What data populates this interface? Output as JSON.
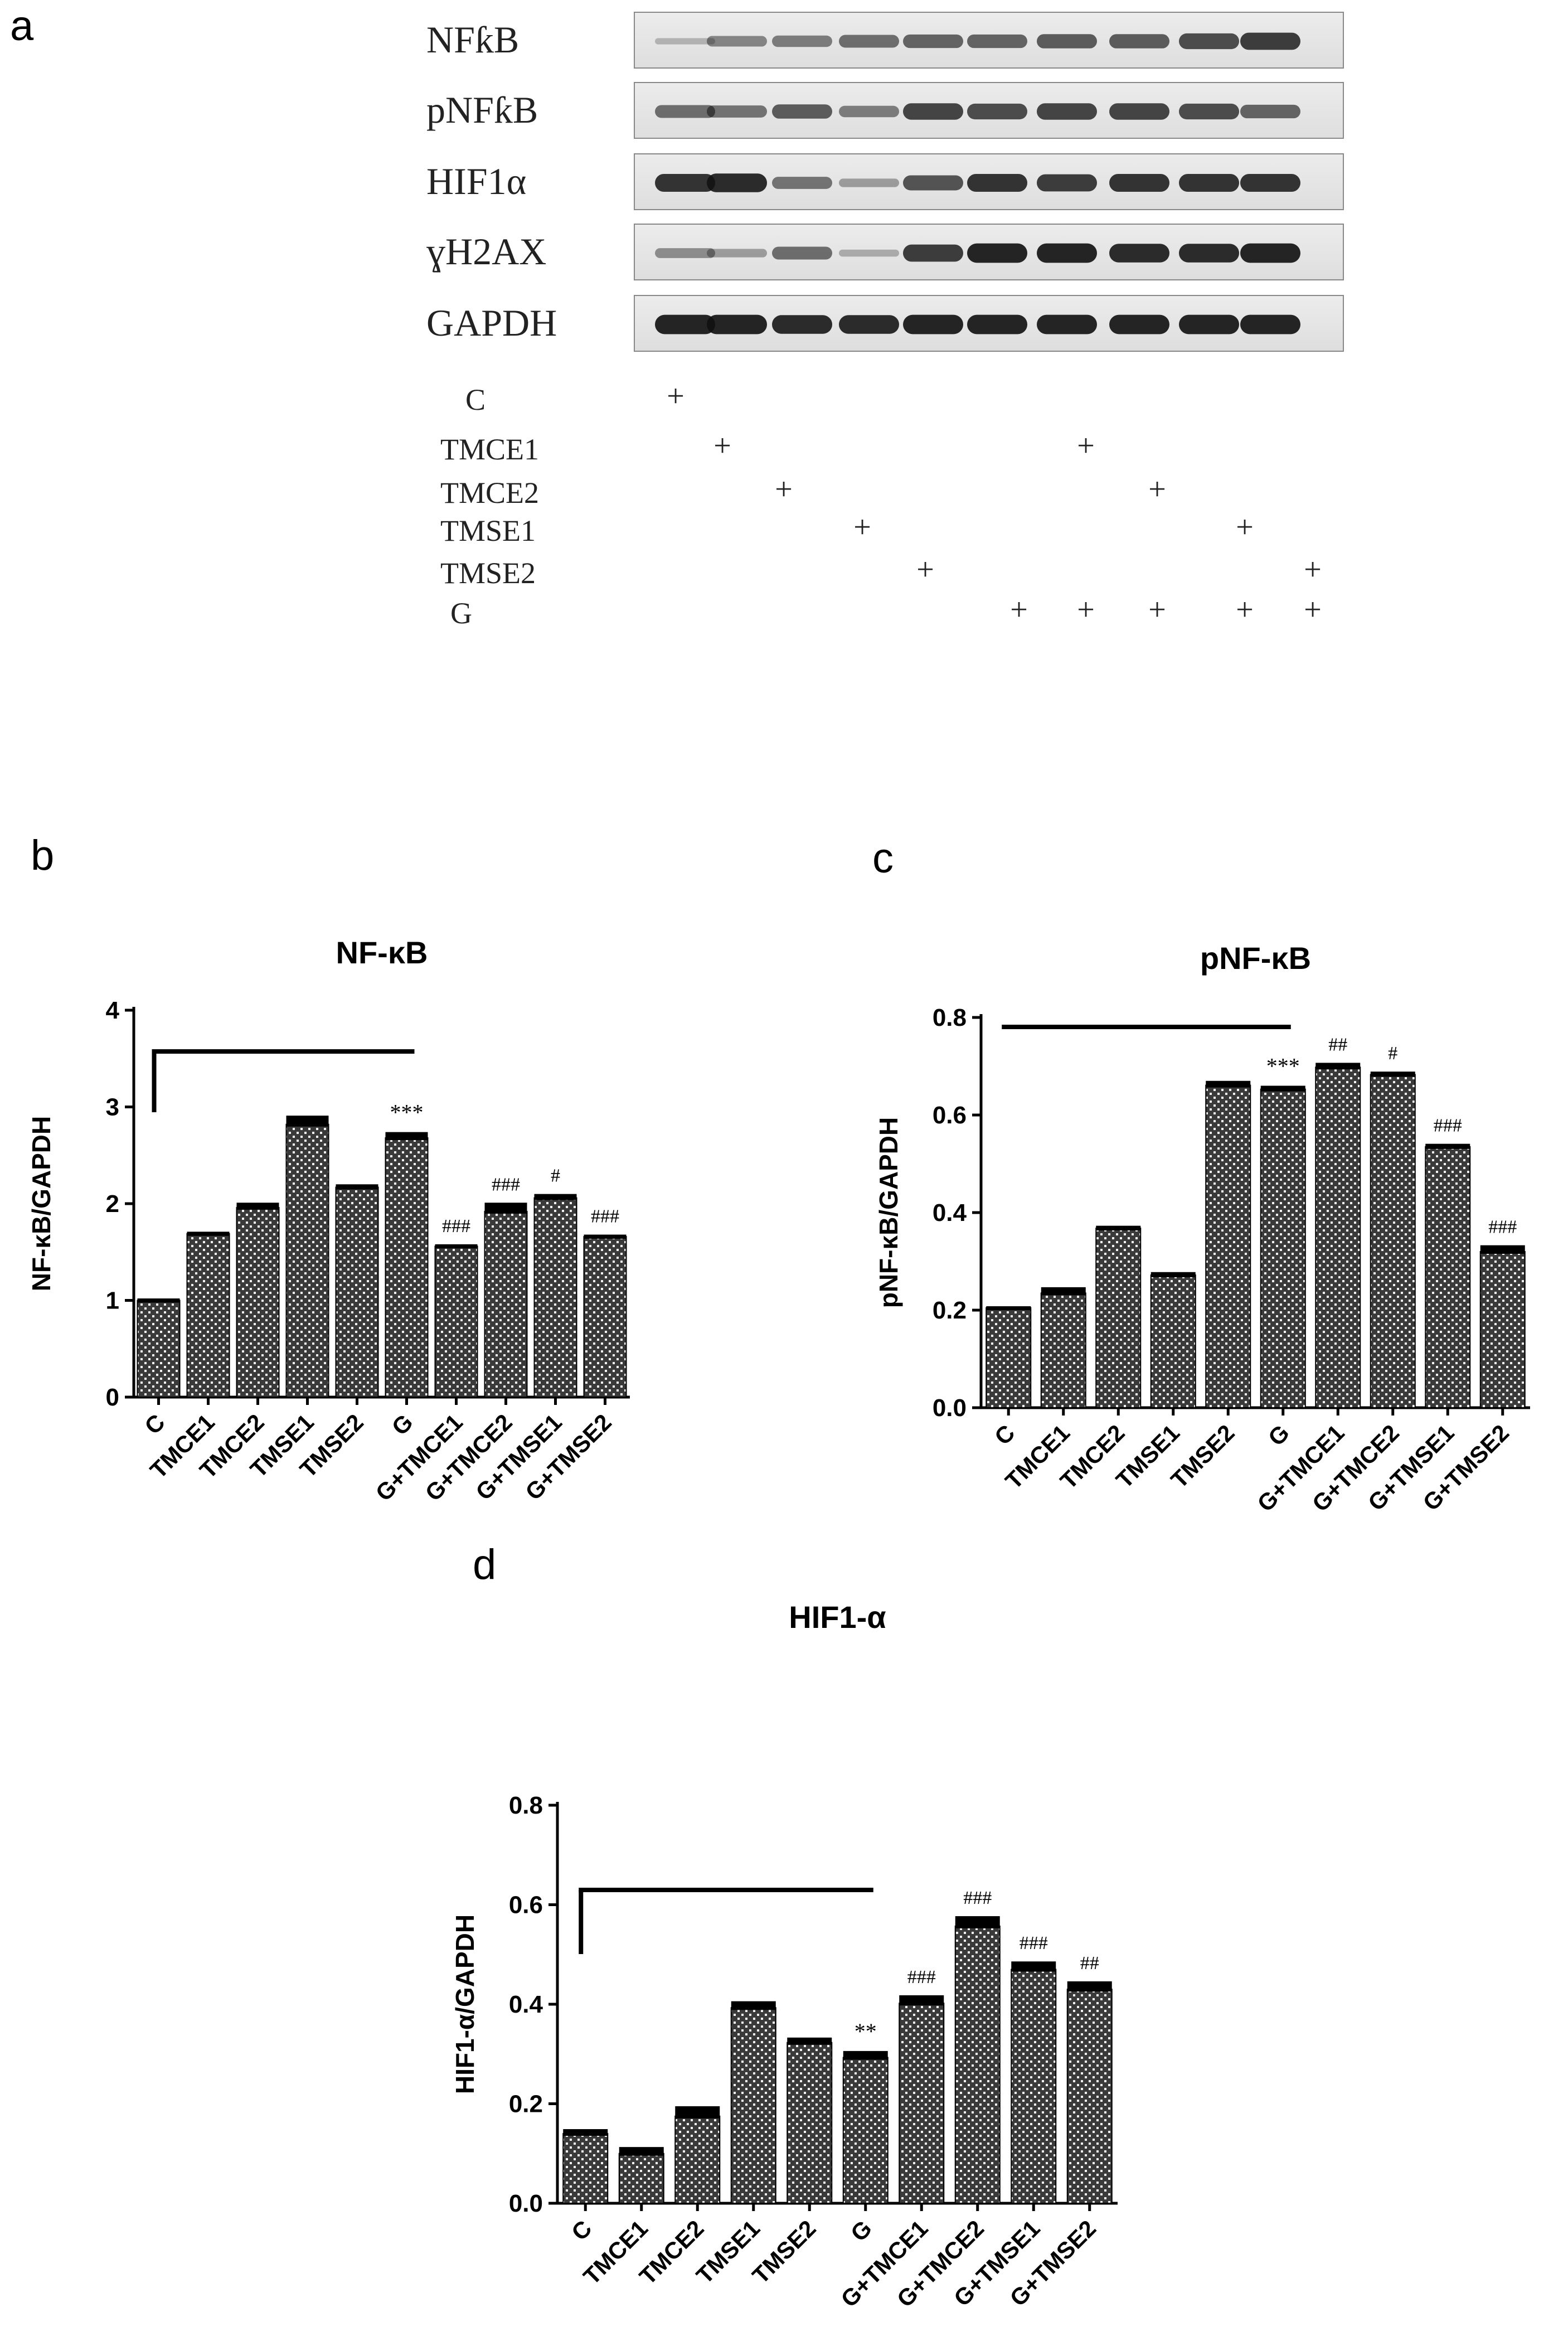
{
  "panel_a": {
    "label": "a",
    "blot_rows": [
      "NFƙB",
      "pNFƙB",
      "HIF1α",
      "ɣH2AX",
      "GAPDH"
    ],
    "treatments": [
      {
        "name": "C",
        "plus": [
          1
        ]
      },
      {
        "name": "TMCE1",
        "plus": [
          2,
          7
        ]
      },
      {
        "name": "TMCE2",
        "plus": [
          3,
          8
        ]
      },
      {
        "name": "TMSE1",
        "plus": [
          4,
          9
        ]
      },
      {
        "name": "TMSE2",
        "plus": [
          5,
          10
        ]
      },
      {
        "name": "G",
        "plus": [
          6,
          7,
          8,
          9,
          10
        ]
      }
    ],
    "plus_symbol": "+"
  },
  "chart_data": [
    {
      "panel": "b",
      "type": "bar",
      "title": "NF-κB",
      "ylabel": "NF-κB/GAPDH",
      "xlabel": "",
      "ylim": [
        0,
        4
      ],
      "yticks": [
        "0",
        "1",
        "2",
        "3",
        "4"
      ],
      "ytick_values": [
        0,
        1,
        2,
        3,
        4
      ],
      "categories": [
        "C",
        "TMCE1",
        "TMCE2",
        "TMSE1",
        "TMSE2",
        "G",
        "G+TMCE1",
        "G+TMCE2",
        "G+TMSE1",
        "G+TMSE2"
      ],
      "values": [
        1.0,
        1.69,
        1.96,
        2.82,
        2.17,
        2.68,
        1.56,
        1.92,
        2.06,
        1.66
      ],
      "errors": [
        0.02,
        0.02,
        0.05,
        0.09,
        0.03,
        0.06,
        0.02,
        0.09,
        0.04,
        0.02
      ],
      "annotations": [
        "",
        "",
        "",
        "",
        "",
        "***",
        "###",
        "###",
        "#",
        "###"
      ],
      "bracket": {
        "from": 0,
        "to": 5
      }
    },
    {
      "panel": "c",
      "type": "bar",
      "title": "pNF-κB",
      "ylabel": "pNF-κB/GAPDH",
      "xlabel": "",
      "ylim": [
        0,
        0.8
      ],
      "yticks": [
        "0.0",
        "0.2",
        "0.4",
        "0.6",
        "0.8"
      ],
      "ytick_values": [
        0,
        0.2,
        0.4,
        0.6,
        0.8
      ],
      "categories": [
        "C",
        "TMCE1",
        "TMCE2",
        "TMSE1",
        "TMSE2",
        "G",
        "G+TMCE1",
        "G+TMCE2",
        "G+TMSE1",
        "G+TMSE2"
      ],
      "values": [
        0.205,
        0.235,
        0.368,
        0.272,
        0.661,
        0.653,
        0.698,
        0.683,
        0.535,
        0.32
      ],
      "errors": [
        0.003,
        0.012,
        0.005,
        0.006,
        0.009,
        0.007,
        0.009,
        0.006,
        0.006,
        0.013
      ],
      "annotations": [
        "",
        "",
        "",
        "",
        "",
        "***",
        "##",
        "#",
        "###",
        "###"
      ],
      "bracket": {
        "from": 0,
        "to": 5
      }
    },
    {
      "panel": "d",
      "type": "bar",
      "title": "HIF1-α",
      "ylabel": "HIF1-α/GAPDH",
      "xlabel": "",
      "ylim": [
        0,
        0.8
      ],
      "yticks": [
        "0.0",
        "0.2",
        "0.4",
        "0.6",
        "0.8"
      ],
      "ytick_values": [
        0,
        0.2,
        0.4,
        0.6,
        0.8
      ],
      "categories": [
        "C",
        "TMCE1",
        "TMCE2",
        "TMSE1",
        "TMSE2",
        "G",
        "G+TMCE1",
        "G+TMCE2",
        "G+TMSE1",
        "G+TMSE2"
      ],
      "values": [
        0.14,
        0.1,
        0.175,
        0.393,
        0.323,
        0.293,
        0.402,
        0.557,
        0.47,
        0.43
      ],
      "errors": [
        0.009,
        0.013,
        0.02,
        0.013,
        0.01,
        0.013,
        0.016,
        0.02,
        0.016,
        0.016
      ],
      "annotations": [
        "",
        "",
        "",
        "",
        "",
        "**",
        "###",
        "###",
        "###",
        "##"
      ],
      "bracket": {
        "from": 0,
        "to": 5
      }
    }
  ],
  "style": {
    "bar_fill": "#3a3a3a",
    "bar_hatch": "#ffffff",
    "axis_color": "#000000"
  }
}
